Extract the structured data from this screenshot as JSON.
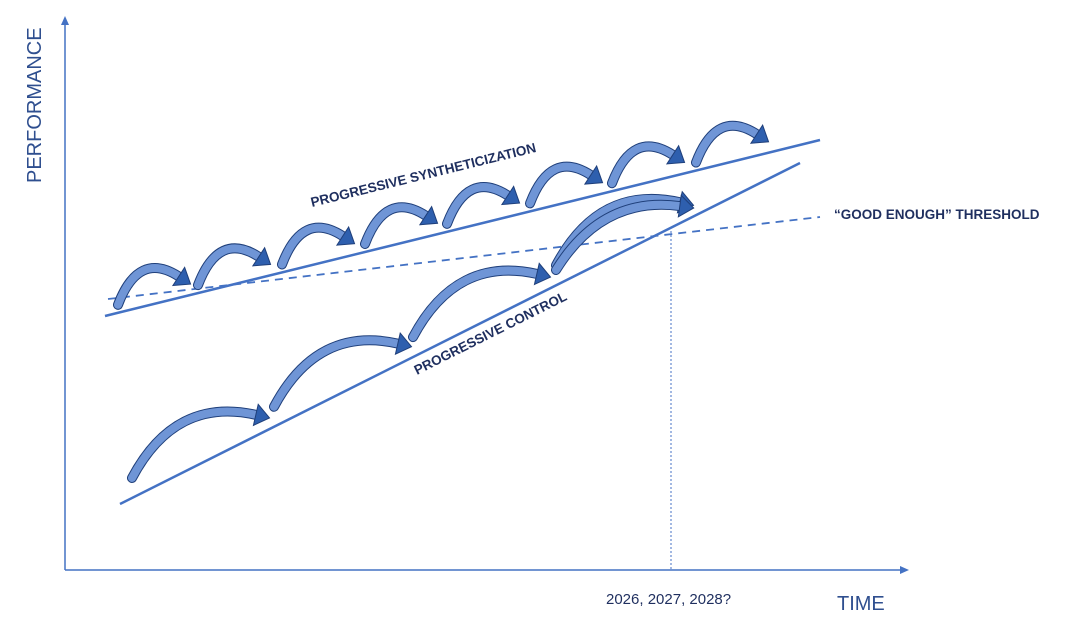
{
  "labels": {
    "y_axis": "PERFORMANCE",
    "x_axis": "TIME",
    "synthetic_line": "PROGRESSIVE SYNTHETICIZATION",
    "control_line": "PROGRESSIVE CONTROL",
    "threshold": "“GOOD ENOUGH” THRESHOLD",
    "crossing_years": "2026, 2027, 2028?"
  },
  "colors": {
    "axis": "#4472c4",
    "line": "#4472c4",
    "arrow_fill": "#2e5fae",
    "arrow_light": "#6f95d6",
    "arrow_stroke": "#1f3f7a",
    "text": "#1f2f5f"
  },
  "arrows": {
    "synthetic_count": 8,
    "control_count": 5
  }
}
